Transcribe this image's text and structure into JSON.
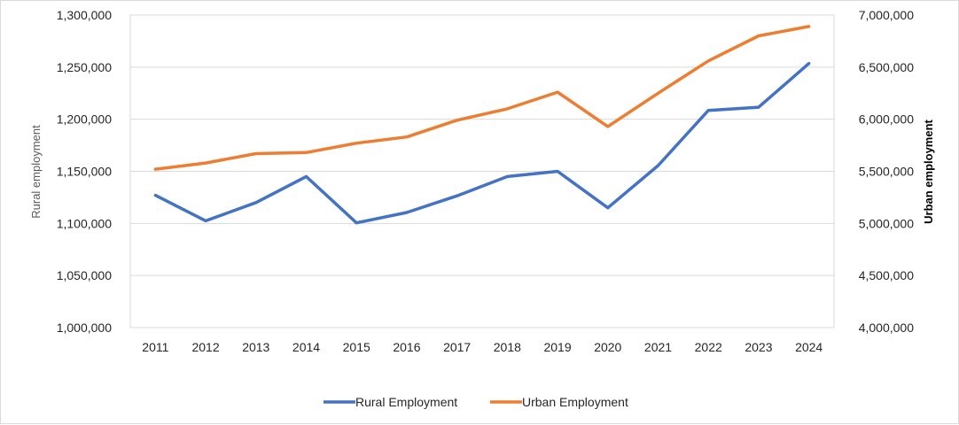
{
  "chart_data": {
    "type": "line",
    "categories": [
      "2011",
      "2012",
      "2013",
      "2014",
      "2015",
      "2016",
      "2017",
      "2018",
      "2019",
      "2020",
      "2021",
      "2022",
      "2023",
      "2024"
    ],
    "series": [
      {
        "name": "Rural Employment",
        "axis": "left",
        "color": "#4472C4",
        "values": [
          1127000,
          1102500,
          1120000,
          1145000,
          1100500,
          1110500,
          1126500,
          1145000,
          1150000,
          1115000,
          1155500,
          1208500,
          1211500,
          1253500
        ]
      },
      {
        "name": "Urban Employment",
        "axis": "right",
        "color": "#ED7D31",
        "values": [
          5520000,
          5580000,
          5670000,
          5680000,
          5770000,
          5830000,
          5990000,
          6100000,
          6260000,
          5930000,
          6250000,
          6560000,
          6800000,
          6890000
        ]
      }
    ],
    "y_left": {
      "label": "Rural employment",
      "lim": [
        1000000,
        1300000
      ],
      "ticks": [
        "1,000,000",
        "1,050,000",
        "1,100,000",
        "1,150,000",
        "1,200,000",
        "1,250,000",
        "1,300,000"
      ],
      "tick_values": [
        1000000,
        1050000,
        1100000,
        1150000,
        1200000,
        1250000,
        1300000
      ]
    },
    "y_right": {
      "label": "Urban employment",
      "lim": [
        4000000,
        7000000
      ],
      "ticks": [
        "4,000,000",
        "4,500,000",
        "5,000,000",
        "5,500,000",
        "6,000,000",
        "6,500,000",
        "7,000,000"
      ],
      "tick_values": [
        4000000,
        4500000,
        5000000,
        5500000,
        6000000,
        6500000,
        7000000
      ]
    },
    "grid": true,
    "legend_position": "bottom"
  }
}
